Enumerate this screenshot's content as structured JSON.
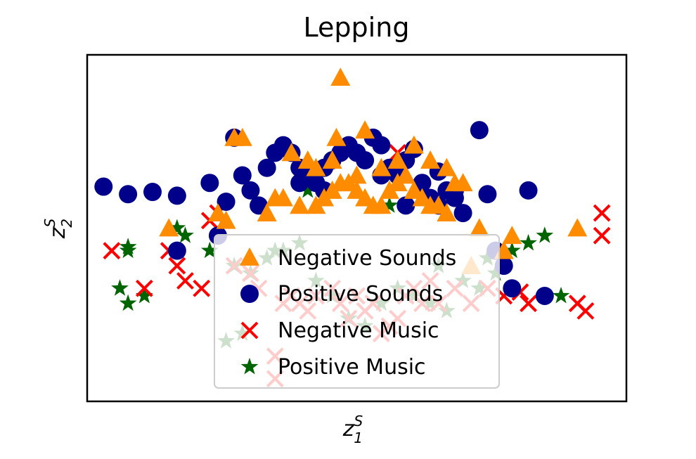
{
  "chart_data": {
    "type": "scatter",
    "title": "Lepping",
    "xlabel": {
      "base": "z",
      "sup": "S",
      "sub": "1"
    },
    "ylabel": {
      "base": "z",
      "sup": "S",
      "sub": "2"
    },
    "xlim": [
      -3.3,
      3.3
    ],
    "ylim": [
      -2.3,
      2.3
    ],
    "ticks": "none",
    "grid": false,
    "legend": "center-bottom",
    "series": [
      {
        "name": "Negative Sounds",
        "marker": "triangle",
        "color": "#ff8c00",
        "x": [
          -0.2,
          -1.5,
          -1.4,
          -0.25,
          0.1,
          -0.8,
          -0.6,
          -0.3,
          -0.5,
          0.0,
          0.3,
          0.5,
          0.7,
          0.9,
          1.1,
          1.2,
          1.3,
          -1.0,
          -0.9,
          -0.7,
          -0.5,
          -0.4,
          -0.3,
          -0.2,
          -0.1,
          0.0,
          0.1,
          0.2,
          0.3,
          0.4,
          0.5,
          0.6,
          0.7,
          0.8,
          0.9,
          1.0,
          1.1,
          -1.7,
          -1.6,
          -1.1,
          1.9,
          2.7,
          -2.3,
          1.5,
          1.8,
          1.4
        ],
        "y": [
          2.0,
          1.2,
          1.2,
          1.2,
          1.3,
          1.0,
          0.9,
          0.9,
          0.8,
          0.7,
          0.8,
          0.9,
          1.1,
          0.9,
          0.8,
          0.6,
          0.6,
          0.4,
          0.4,
          0.3,
          0.3,
          0.4,
          0.5,
          0.6,
          0.6,
          0.5,
          0.4,
          0.3,
          0.3,
          0.5,
          0.6,
          0.7,
          0.5,
          0.4,
          0.3,
          0.3,
          0.2,
          0.2,
          0.1,
          0.2,
          -0.1,
          0.0,
          0.0,
          0.0,
          -0.3,
          -0.5
        ]
      },
      {
        "name": "Positive Sounds",
        "marker": "circle",
        "color": "#00008b",
        "x": [
          -3.1,
          -2.8,
          -2.5,
          -2.2,
          -1.8,
          -1.5,
          -1.4,
          -1.2,
          -1.1,
          -1.0,
          -0.9,
          -0.8,
          -0.7,
          -0.6,
          -0.5,
          -0.4,
          -0.3,
          -0.2,
          -0.1,
          0.0,
          0.1,
          0.2,
          0.3,
          0.4,
          0.5,
          0.6,
          0.7,
          0.8,
          0.9,
          1.0,
          1.1,
          1.2,
          1.3,
          1.5,
          1.6,
          1.7,
          1.8,
          1.9,
          2.1,
          2.3,
          -1.6,
          -1.3,
          -0.7,
          -0.4,
          0.3,
          0.6,
          1.0,
          1.2,
          -2.2,
          -1.7
        ],
        "y": [
          0.55,
          0.45,
          0.48,
          0.43,
          0.6,
          1.2,
          0.7,
          0.3,
          0.8,
          1.0,
          1.1,
          1.0,
          0.8,
          0.7,
          0.6,
          0.5,
          0.9,
          1.0,
          1.1,
          1.0,
          0.9,
          1.2,
          1.1,
          0.8,
          0.7,
          0.9,
          1.05,
          0.6,
          0.4,
          0.3,
          0.5,
          0.4,
          0.2,
          1.3,
          0.45,
          -0.3,
          -0.5,
          -0.8,
          0.5,
          -0.9,
          0.35,
          0.5,
          0.6,
          0.8,
          0.7,
          0.3,
          0.75,
          0.5,
          -0.3,
          -0.1
        ]
      },
      {
        "name": "Negative Music",
        "marker": "x",
        "color": "#ff0000",
        "x": [
          -3.0,
          -2.6,
          -2.3,
          -2.2,
          -2.1,
          -1.9,
          -1.8,
          -1.7,
          -1.5,
          -1.3,
          -1.2,
          -1.0,
          -0.9,
          -0.8,
          -0.7,
          -0.6,
          -0.5,
          -0.3,
          -0.2,
          -0.1,
          0.0,
          0.1,
          0.2,
          0.3,
          0.4,
          0.5,
          0.6,
          0.7,
          0.8,
          0.9,
          1.0,
          1.2,
          1.4,
          1.6,
          1.8,
          2.0,
          2.1,
          2.8,
          3.0,
          3.0,
          2.7,
          -1.0,
          0.5
        ],
        "y": [
          -0.3,
          -0.8,
          -0.3,
          -0.5,
          -0.7,
          -0.8,
          0.1,
          0.2,
          -0.5,
          -0.6,
          -0.8,
          -1.7,
          -1.0,
          -0.9,
          -1.0,
          -1.1,
          -0.9,
          -0.8,
          -1.0,
          -1.2,
          -0.9,
          -1.1,
          -1.0,
          -1.4,
          -1.3,
          -1.2,
          -0.9,
          -0.8,
          -1.0,
          -0.7,
          -1.0,
          -0.8,
          -1.0,
          -0.8,
          -0.9,
          -0.85,
          -1.0,
          -1.1,
          0.2,
          -0.1,
          -1.0,
          -2.0,
          1.0
        ]
      },
      {
        "name": "Positive Music",
        "marker": "star",
        "color": "#006400",
        "x": [
          -2.8,
          -2.8,
          -2.9,
          -2.8,
          -2.6,
          -2.2,
          -2.1,
          -1.8,
          -1.5,
          -1.3,
          -1.1,
          -0.9,
          -0.7,
          -0.5,
          -0.3,
          -0.1,
          0.1,
          0.3,
          0.5,
          0.7,
          0.9,
          1.1,
          1.3,
          1.5,
          1.7,
          1.9,
          2.1,
          2.3,
          2.5,
          -1.6,
          -1.4,
          -0.6,
          0.4,
          1.0,
          1.6,
          -1.0
        ],
        "y": [
          -0.3,
          -0.25,
          -0.8,
          -1.0,
          -0.9,
          0.0,
          -0.1,
          -0.3,
          -0.5,
          -0.6,
          -0.4,
          -0.3,
          -0.2,
          -0.7,
          -0.9,
          -1.2,
          -1.3,
          -1.0,
          -0.8,
          -0.9,
          -1.0,
          -1.1,
          -0.7,
          -0.8,
          -0.6,
          -0.3,
          -0.2,
          -0.1,
          -0.9,
          -1.5,
          -1.4,
          0.5,
          0.3,
          -0.5,
          -0.4,
          -0.3
        ]
      }
    ]
  }
}
